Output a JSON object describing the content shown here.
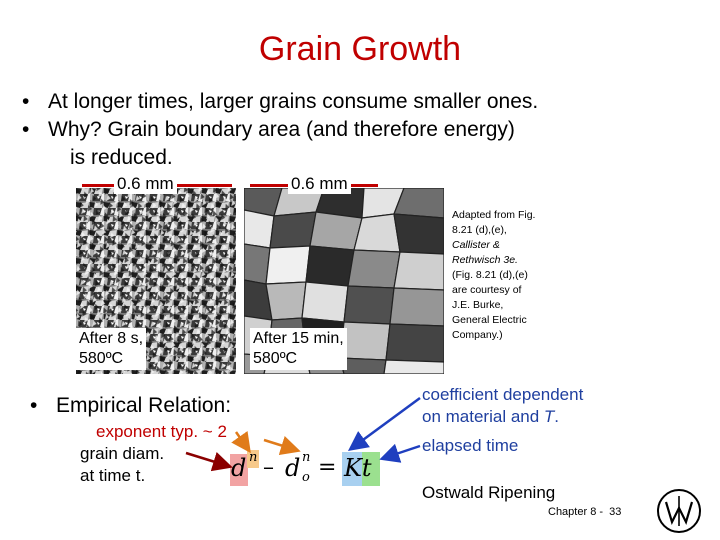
{
  "slide": {
    "title": "Grain Growth",
    "bullets": [
      "At longer times, larger grains consume smaller ones.",
      "Why?  Grain boundary area (and therefore energy)",
      "is reduced."
    ],
    "bullet_symbol": "•",
    "micrographs": [
      {
        "scale_label": "0.6 mm",
        "caption_lines": [
          "After 8 s,",
          "580ºC"
        ]
      },
      {
        "scale_label": "0.6 mm",
        "caption_lines": [
          "After 15 min,",
          "580ºC"
        ]
      }
    ],
    "credit_lines": [
      {
        "text": "Adapted from Fig.",
        "italic": false
      },
      {
        "text": "8.21 (d),(e),",
        "italic": false
      },
      {
        "text": "Callister &",
        "italic": true
      },
      {
        "text": "Rethwisch 3e.",
        "italic": true
      },
      {
        "text": "(Fig. 8.21 (d),(e)",
        "italic": false
      },
      {
        "text": "are courtesy of",
        "italic": false
      },
      {
        "text": "J.E. Burke,",
        "italic": false
      },
      {
        "text": "General Electric",
        "italic": false
      },
      {
        "text": "Company.)",
        "italic": false
      }
    ],
    "empirical_label": "Empirical Relation:",
    "exponent_note": "exponent typ. ~ 2",
    "grain_diam_note": "grain diam.",
    "time_note": "at time t.",
    "equation": {
      "d": "d",
      "n": "n",
      "minus": "–",
      "d0": "d",
      "o": "o",
      "equals": "=",
      "rhs": "Kt"
    },
    "coeff_note_1": "coefficient dependent",
    "coeff_note_2a": "on material and ",
    "coeff_note_2b": "T",
    "coeff_note_2c": ".",
    "elapsed_note": "elapsed time",
    "ostwald": "Ostwald Ripening",
    "footer_label": "Chapter 8 -",
    "page_number": "33",
    "colors": {
      "title": "#c00000",
      "exponent_note": "#c00000",
      "scale_bar": "#c00000",
      "arrow_red": "#8b0000",
      "arrow_orange": "#e07b1a",
      "arrow_blue": "#1f3fbf",
      "box_red": "#f2a3a3",
      "box_orange": "#f7c98a",
      "box_blue": "#a8d0f0",
      "box_green": "#9be08f",
      "anno_blue": "#1f3f9f"
    }
  }
}
